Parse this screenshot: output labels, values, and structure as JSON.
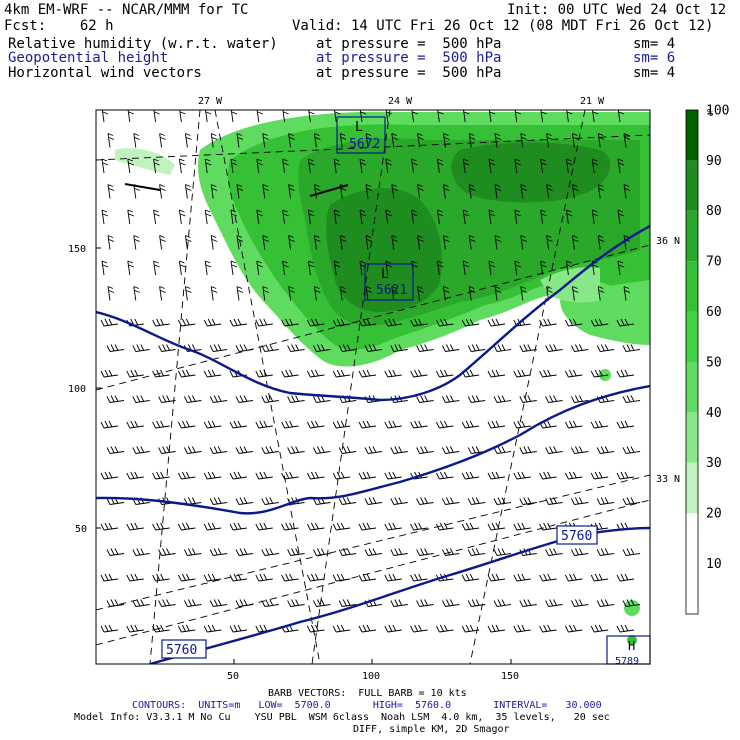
{
  "header": {
    "model": "4km EM-WRF -- NCAR/MMM for TC",
    "init": "Init: 00 UTC Wed 24 Oct 12",
    "fcst": "Fcst:    62 h",
    "valid": "Valid: 14 UTC Fri 26 Oct 12 (08 MDT Fri 26 Oct 12)",
    "fields": [
      {
        "name": "Relative humidity (w.r.t. water)",
        "level": "at pressure =  500 hPa",
        "sm": "sm= 4",
        "color": "#000000"
      },
      {
        "name": "Geopotential height",
        "level": "at pressure =  500 hPa",
        "sm": "sm= 6",
        "color": "#1a1aa0"
      },
      {
        "name": "Horizontal wind vectors",
        "level": "at pressure =  500 hPa",
        "sm": "sm= 4",
        "color": "#000000"
      }
    ]
  },
  "map": {
    "lon_labels": [
      "27 W",
      "24 W",
      "21 W"
    ],
    "lat_labels": [
      "36 N",
      "33 N"
    ],
    "y_ticks": [
      "150",
      "100",
      "50"
    ],
    "x_ticks": [
      "50",
      "100",
      "150"
    ],
    "height_labels": {
      "low1": "5672",
      "low2": "5621",
      "c5760a": "5760",
      "c5760b": "5760",
      "high_value": "5789",
      "L": "L",
      "H": "H"
    }
  },
  "colorbar": {
    "unit": "%",
    "labels": [
      "100",
      "90",
      "80",
      "70",
      "60",
      "50",
      "40",
      "30",
      "20",
      "10"
    ],
    "colors": [
      "#006400",
      "#1f8c1f",
      "#2aa82a",
      "#35c035",
      "#3fd13f",
      "#5fdc5f",
      "#88e888",
      "#bff2bf",
      "#ffffff",
      "#ffffff"
    ]
  },
  "footer": {
    "barb": "BARB VECTORS:  FULL BARB = 10 kts",
    "contours": "CONTOURS:  UNITS=m   LOW=  5700.0       HIGH=  5760.0       INTERVAL=   30.000",
    "model_info": "Model Info: V3.3.1 M No Cu    YSU PBL  WSM 6class  Noah LSM  4.0 km,  35 levels,   20 sec",
    "diff": "DIFF, simple KM, 2D Smagor"
  }
}
